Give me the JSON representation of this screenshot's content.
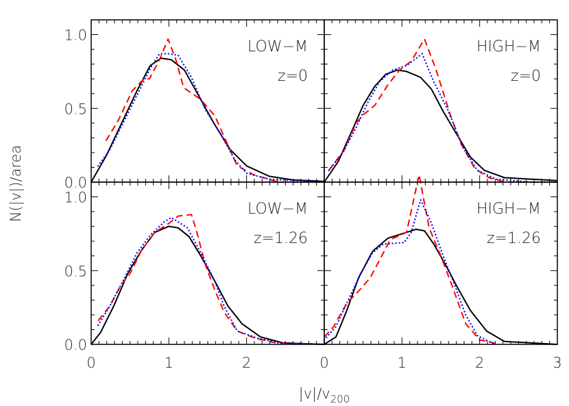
{
  "chart_data": [
    {
      "type": "line",
      "panel": "top-left",
      "labels": [
        "LOW−M",
        "z=0"
      ],
      "xlim": [
        0,
        3
      ],
      "ylim": [
        0,
        1.1
      ],
      "xticklabels": [],
      "yticklabels": [
        "0.0",
        "0.5",
        "1.0"
      ],
      "series": [
        {
          "style": "solid",
          "color": "#000000",
          "x": [
            0,
            0.2,
            0.41,
            0.59,
            0.76,
            0.9,
            1.03,
            1.2,
            1.41,
            1.59,
            1.79,
            2.0,
            2.29,
            2.59,
            3.0
          ],
          "y": [
            0,
            0.185,
            0.42,
            0.62,
            0.79,
            0.84,
            0.83,
            0.76,
            0.56,
            0.39,
            0.22,
            0.11,
            0.04,
            0.015,
            0.005
          ]
        },
        {
          "style": "dashed",
          "color": "#ff0000",
          "x": [
            0.19,
            0.35,
            0.53,
            0.68,
            0.75,
            0.88,
            0.99,
            1.09,
            1.19,
            1.41,
            1.59,
            1.76,
            1.88,
            2.09,
            2.41,
            3.0
          ],
          "y": [
            0.28,
            0.42,
            0.62,
            0.7,
            0.7,
            0.83,
            0.97,
            0.83,
            0.64,
            0.56,
            0.45,
            0.25,
            0.11,
            0.05,
            0,
            0
          ]
        },
        {
          "style": "dotted",
          "color": "#0000ff",
          "x": [
            0.09,
            0.24,
            0.41,
            0.59,
            0.76,
            0.88,
            1.0,
            1.12,
            1.29,
            1.47,
            1.65,
            1.85,
            2.0,
            2.29,
            3.0
          ],
          "y": [
            0.11,
            0.22,
            0.4,
            0.59,
            0.77,
            0.87,
            0.87,
            0.86,
            0.71,
            0.49,
            0.34,
            0.15,
            0.06,
            0.02,
            0
          ]
        }
      ]
    },
    {
      "type": "line",
      "panel": "top-right",
      "labels": [
        "HIGH−M",
        "z=0"
      ],
      "xlim": [
        0,
        3
      ],
      "ylim": [
        0,
        1.1
      ],
      "xticklabels": [],
      "yticklabels": [],
      "series": [
        {
          "style": "solid",
          "color": "#000000",
          "x": [
            0,
            0.18,
            0.35,
            0.5,
            0.65,
            0.79,
            0.94,
            1.06,
            1.24,
            1.38,
            1.53,
            1.71,
            1.88,
            2.06,
            2.32,
            3.0
          ],
          "y": [
            0,
            0.14,
            0.34,
            0.52,
            0.65,
            0.73,
            0.76,
            0.75,
            0.71,
            0.63,
            0.48,
            0.32,
            0.17,
            0.08,
            0.03,
            0.01
          ]
        },
        {
          "style": "dashed",
          "color": "#ff0000",
          "x": [
            0.06,
            0.26,
            0.41,
            0.51,
            0.65,
            0.82,
            0.97,
            1.12,
            1.29,
            1.44,
            1.62,
            1.76,
            1.94,
            2.12,
            2.32,
            3.0
          ],
          "y": [
            0.08,
            0.22,
            0.4,
            0.46,
            0.52,
            0.66,
            0.76,
            0.82,
            0.97,
            0.76,
            0.46,
            0.26,
            0.09,
            0.03,
            0,
            0
          ]
        },
        {
          "style": "dotted",
          "color": "#0000ff",
          "x": [
            0.06,
            0.24,
            0.41,
            0.56,
            0.71,
            0.88,
            1.06,
            1.26,
            1.41,
            1.59,
            1.79,
            1.97,
            2.21,
            2.65,
            3.0
          ],
          "y": [
            0.08,
            0.2,
            0.37,
            0.54,
            0.68,
            0.76,
            0.79,
            0.87,
            0.68,
            0.49,
            0.23,
            0.08,
            0.02,
            0,
            0
          ]
        }
      ]
    },
    {
      "type": "line",
      "panel": "bottom-left",
      "labels": [
        "LOW−M",
        "z=1.26"
      ],
      "xlim": [
        0,
        3
      ],
      "ylim": [
        0,
        1.1
      ],
      "xticklabels": [
        "0",
        "1",
        "2"
      ],
      "yticklabels": [
        "0.0",
        "0.5",
        "1.0"
      ],
      "series": [
        {
          "style": "solid",
          "color": "#000000",
          "x": [
            0,
            0.12,
            0.29,
            0.47,
            0.65,
            0.82,
            1.0,
            1.12,
            1.26,
            1.41,
            1.59,
            1.76,
            1.94,
            2.18,
            2.47,
            3.0
          ],
          "y": [
            0,
            0.08,
            0.26,
            0.48,
            0.64,
            0.76,
            0.8,
            0.79,
            0.73,
            0.6,
            0.43,
            0.26,
            0.14,
            0.05,
            0.01,
            0
          ]
        },
        {
          "style": "dashed",
          "color": "#ff0000",
          "x": [
            0.09,
            0.24,
            0.38,
            0.5,
            0.65,
            0.82,
            1.0,
            1.12,
            1.29,
            1.35,
            1.47,
            1.59,
            1.71,
            1.88,
            2.12,
            2.38,
            3.0
          ],
          "y": [
            0.16,
            0.26,
            0.4,
            0.48,
            0.64,
            0.76,
            0.82,
            0.87,
            0.88,
            0.78,
            0.54,
            0.37,
            0.22,
            0.09,
            0.04,
            0.01,
            0
          ]
        },
        {
          "style": "dotted",
          "color": "#0000ff",
          "x": [
            0.09,
            0.24,
            0.41,
            0.59,
            0.76,
            0.94,
            1.03,
            1.24,
            1.41,
            1.59,
            1.71,
            1.88,
            2.15,
            2.44,
            3.0
          ],
          "y": [
            0.13,
            0.26,
            0.43,
            0.62,
            0.74,
            0.83,
            0.86,
            0.79,
            0.62,
            0.43,
            0.26,
            0.09,
            0.04,
            0.01,
            0
          ]
        }
      ]
    },
    {
      "type": "line",
      "panel": "bottom-right",
      "labels": [
        "HIGH−M",
        "z=1.26"
      ],
      "xlim": [
        0,
        3
      ],
      "ylim": [
        0,
        1.1
      ],
      "xticklabels": [
        "0",
        "1",
        "2",
        "3"
      ],
      "yticklabels": [],
      "series": [
        {
          "style": "solid",
          "color": "#000000",
          "x": [
            0,
            0.15,
            0.29,
            0.44,
            0.62,
            0.82,
            1.06,
            1.18,
            1.29,
            1.41,
            1.56,
            1.71,
            1.88,
            2.09,
            2.32,
            3.0
          ],
          "y": [
            0,
            0.05,
            0.23,
            0.45,
            0.63,
            0.72,
            0.76,
            0.78,
            0.77,
            0.68,
            0.54,
            0.39,
            0.23,
            0.09,
            0.02,
            0
          ]
        },
        {
          "style": "dashed",
          "color": "#ff0000",
          "x": [
            0,
            0.12,
            0.29,
            0.44,
            0.59,
            0.74,
            0.85,
            1.06,
            1.22,
            1.35,
            1.5,
            1.65,
            1.82,
            2.0,
            2.18,
            2.2
          ],
          "y": [
            0.05,
            0.12,
            0.28,
            0.36,
            0.45,
            0.6,
            0.71,
            0.76,
            1.15,
            0.79,
            0.6,
            0.39,
            0.14,
            0.03,
            0.01,
            0
          ]
        },
        {
          "style": "dotted",
          "color": "#0000ff",
          "x": [
            0,
            0.15,
            0.29,
            0.47,
            0.62,
            0.76,
            1.03,
            1.12,
            1.24,
            1.38,
            1.53,
            1.68,
            1.82,
            1.97,
            2.12,
            2.2
          ],
          "y": [
            0.03,
            0.12,
            0.28,
            0.48,
            0.62,
            0.68,
            0.69,
            0.76,
            0.98,
            0.82,
            0.6,
            0.4,
            0.2,
            0.06,
            0.02,
            0
          ]
        }
      ]
    }
  ],
  "axes": {
    "xlabel": "|v|/v",
    "xlabel_sub": "200",
    "ylabel": "N(|v|)/area"
  }
}
